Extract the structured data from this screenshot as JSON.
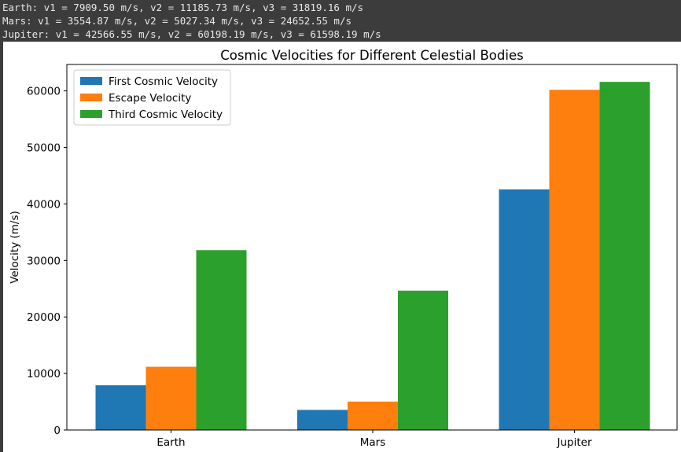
{
  "console": {
    "lines": [
      "Earth: v1 = 7909.50 m/s, v2 = 11185.73 m/s, v3 = 31819.16 m/s",
      "Mars: v1 = 3554.87 m/s, v2 = 5027.34 m/s, v3 = 24652.55 m/s",
      "Jupiter: v1 = 42566.55 m/s, v2 = 60198.19 m/s, v3 = 61598.19 m/s"
    ]
  },
  "chart_data": {
    "type": "bar",
    "title": "Cosmic Velocities for Different Celestial Bodies",
    "xlabel": "",
    "ylabel": "Velocity (m/s)",
    "categories": [
      "Earth",
      "Mars",
      "Jupiter"
    ],
    "series": [
      {
        "name": "First Cosmic Velocity",
        "values": [
          7909.5,
          3554.87,
          42566.55
        ],
        "color": "#1f77b4"
      },
      {
        "name": "Escape Velocity",
        "values": [
          11185.73,
          5027.34,
          60198.19
        ],
        "color": "#ff7f0e"
      },
      {
        "name": "Third Cosmic Velocity",
        "values": [
          31819.16,
          24652.55,
          61598.19
        ],
        "color": "#2ca02c"
      }
    ],
    "ylim": [
      0,
      64678.1
    ],
    "yticks": [
      0,
      10000,
      20000,
      30000,
      40000,
      50000,
      60000
    ],
    "grid": false,
    "legend_position": "upper-left"
  }
}
